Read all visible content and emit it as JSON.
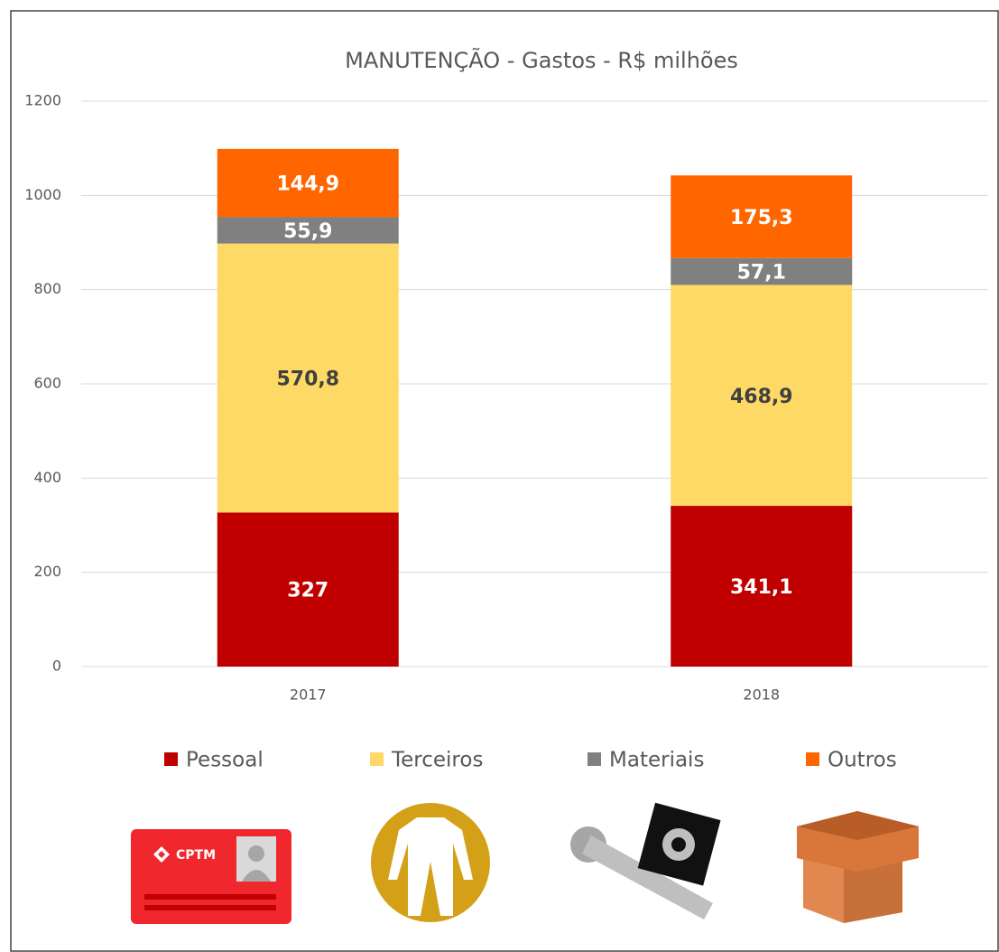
{
  "chart_data": {
    "type": "stacked_bar",
    "title": "MANUTENÇÃO - Gastos - R$ milhões",
    "categories": [
      "2017",
      "2018"
    ],
    "series": [
      {
        "name": "Pessoal",
        "color": "#c00000",
        "label_color": "#ffffff",
        "values": [
          327,
          341.1
        ],
        "value_labels": [
          "327",
          "341,1"
        ]
      },
      {
        "name": "Terceiros",
        "color": "#ffd966",
        "label_color": "#404040",
        "values": [
          570.8,
          468.9
        ],
        "value_labels": [
          "570,8",
          "468,9"
        ]
      },
      {
        "name": "Materiais",
        "color": "#808080",
        "label_color": "#ffffff",
        "values": [
          55.9,
          57.1
        ],
        "value_labels": [
          "55,9",
          "57,1"
        ]
      },
      {
        "name": "Outros",
        "color": "#ff6600",
        "label_color": "#ffffff",
        "values": [
          144.9,
          175.3
        ],
        "value_labels": [
          "144,9",
          "175,3"
        ]
      }
    ],
    "ylim": [
      0,
      1200
    ],
    "yticks": [
      0,
      200,
      400,
      600,
      800,
      1000,
      1200
    ],
    "grid": true,
    "legend": "bottom",
    "badge_text": "CPTM"
  }
}
